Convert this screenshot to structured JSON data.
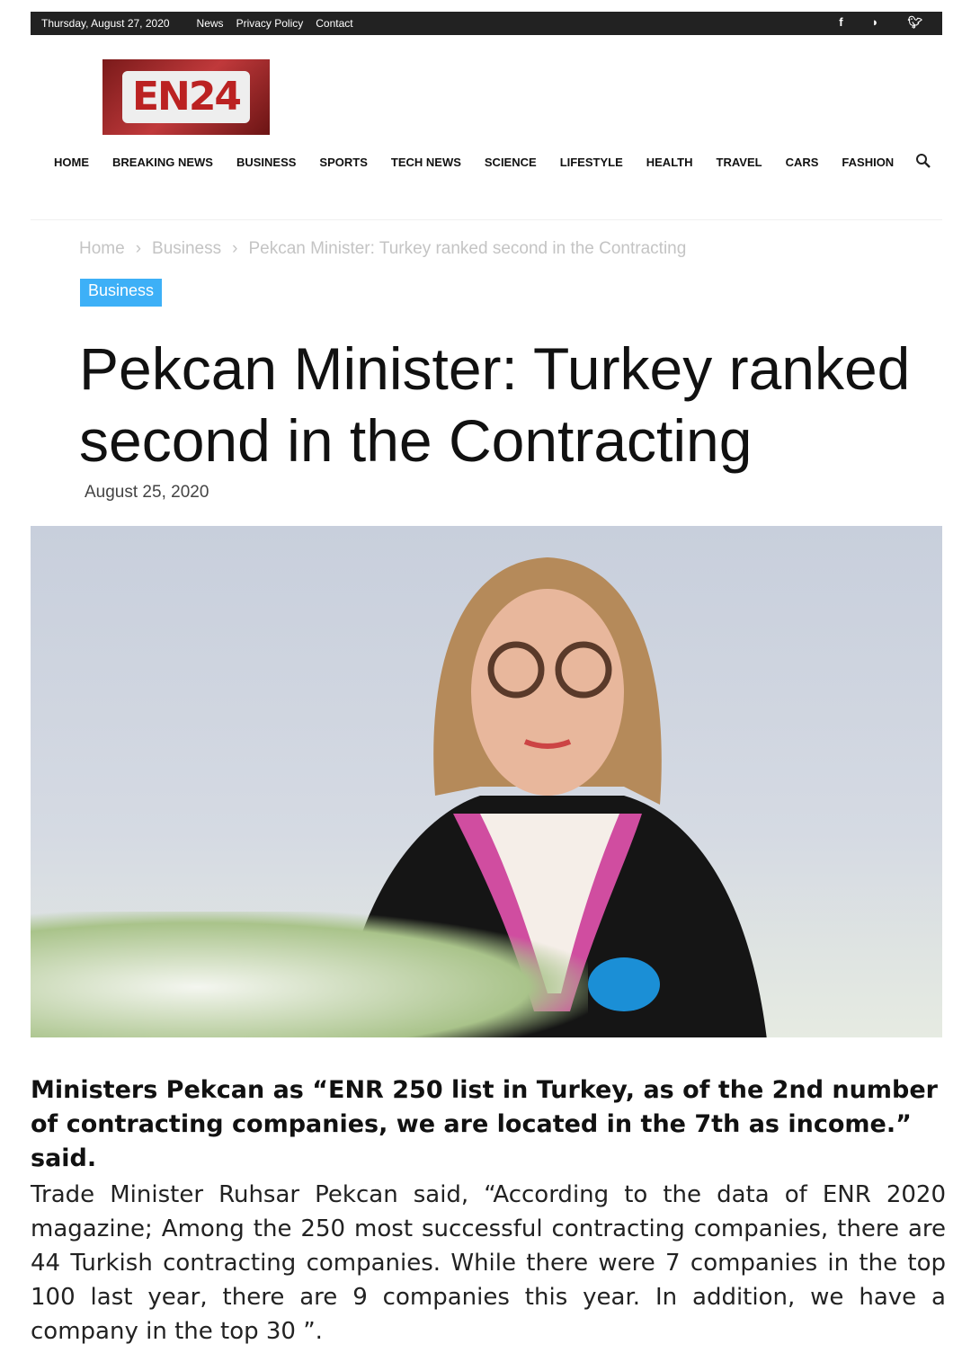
{
  "topbar": {
    "date": "Thursday, August 27, 2020",
    "links": [
      "News",
      "Privacy Policy",
      "Contact"
    ],
    "social": [
      "facebook-icon",
      "rss-icon",
      "twitter-icon"
    ]
  },
  "logo": {
    "text": "EN24"
  },
  "nav": [
    "HOME",
    "BREAKING NEWS",
    "BUSINESS",
    "SPORTS",
    "TECH NEWS",
    "SCIENCE",
    "LIFESTYLE",
    "HEALTH",
    "TRAVEL",
    "CARS",
    "FASHION"
  ],
  "breadcrumb": [
    "Home",
    "Business",
    "Pekcan Minister: Turkey ranked second in the Contracting"
  ],
  "article": {
    "category": "Business",
    "title": "Pekcan Minister: Turkey ranked second in the Contracting",
    "date": "August 25, 2020",
    "lead": "Ministers Pekcan as “ENR 250 list in Turkey, as of the 2nd number of contracting companies, we are located in the 7th as income.” said.",
    "body": "Trade Minister Ruhsar Pekcan said, “According to the data of ENR 2020 magazine; Among the 250 most successful contracting companies, there are 44 Turkish contracting companies. While there were 7 companies in the top 100 last year, there are 9 companies this year. In addition, we have a company in the top 30 ”."
  }
}
